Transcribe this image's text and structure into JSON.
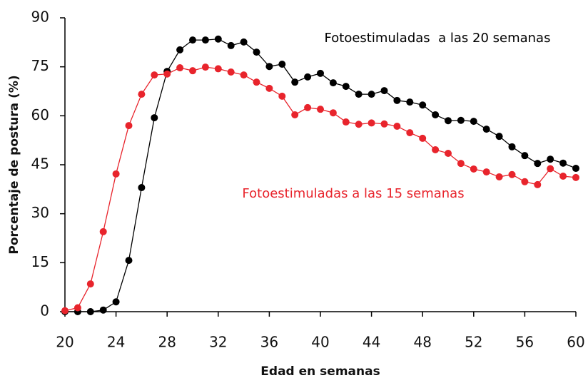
{
  "chart_data": {
    "type": "line",
    "xlabel": "Edad en semanas",
    "ylabel": "Porcentaje de postura (%)",
    "x": [
      20,
      21,
      22,
      23,
      24,
      25,
      26,
      27,
      28,
      29,
      30,
      31,
      32,
      33,
      34,
      35,
      36,
      37,
      38,
      39,
      40,
      41,
      42,
      43,
      44,
      45,
      46,
      47,
      48,
      49,
      50,
      51,
      52,
      53,
      54,
      55,
      56,
      57,
      58,
      59,
      60
    ],
    "series": [
      {
        "name": "Fotoestimuladas  a las 20 semanas",
        "color": "#000000",
        "values": [
          0,
          0,
          0,
          0.5,
          3,
          15.7,
          38,
          59.4,
          73.6,
          80.2,
          83.2,
          83.2,
          83.5,
          81.5,
          82.6,
          79.5,
          75.1,
          75.8,
          70.3,
          71.9,
          73,
          70.1,
          69,
          66.6,
          66.6,
          67.7,
          64.7,
          64.2,
          63.3,
          60.3,
          58.5,
          58.6,
          58.3,
          55.9,
          53.7,
          50.5,
          47.8,
          45.4,
          46.7,
          45.5,
          43.9
        ]
      },
      {
        "name": "Fotoestimuladas a las 15 semanas",
        "color": "#e8242c",
        "values": [
          0.3,
          1.2,
          8.5,
          24.5,
          42.2,
          57,
          66.6,
          72.5,
          72.8,
          74.7,
          73.8,
          74.9,
          74.4,
          73.4,
          72.5,
          70.3,
          68.4,
          66,
          60.3,
          62.5,
          62,
          60.9,
          58.1,
          57.4,
          57.8,
          57.5,
          56.8,
          54.8,
          53.1,
          49.6,
          48.5,
          45.4,
          43.7,
          42.8,
          41.3,
          42,
          39.8,
          38.9,
          43.8,
          41.5,
          41.1
        ]
      }
    ],
    "xlim": [
      20,
      60
    ],
    "xticks": [
      20,
      24,
      28,
      32,
      36,
      40,
      44,
      48,
      52,
      56,
      60
    ],
    "ylim": [
      0,
      90
    ],
    "yticks": [
      0,
      15,
      30,
      45,
      60,
      75,
      90
    ]
  }
}
